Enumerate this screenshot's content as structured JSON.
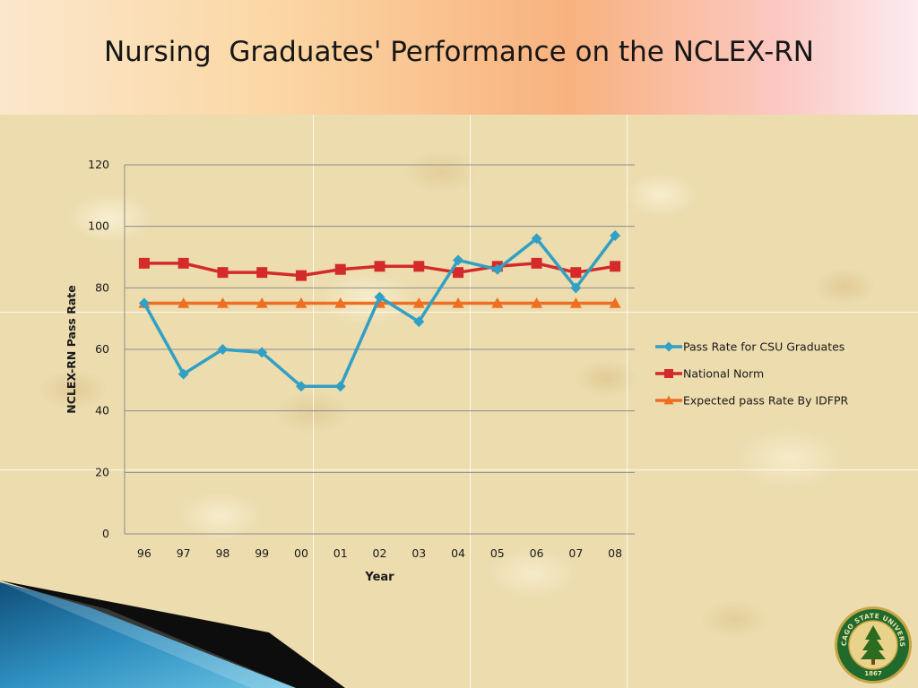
{
  "slide": {
    "title": "Nursing  Graduates' Performance on the NCLEX-RN"
  },
  "colors": {
    "csu": "#31a0c4",
    "national": "#d42a2a",
    "expected": "#ee6f22",
    "grid": "#8c8c8c",
    "text": "#1a1a1a"
  },
  "chart_data": {
    "type": "line",
    "title": "",
    "xlabel": "Year",
    "ylabel": "NCLEX-RN Pass Rate",
    "categories": [
      "96",
      "97",
      "98",
      "99",
      "00",
      "01",
      "02",
      "03",
      "04",
      "05",
      "06",
      "07",
      "08"
    ],
    "ylim": [
      0,
      120
    ],
    "yticks": [
      "0",
      "20",
      "40",
      "60",
      "80",
      "100",
      "120"
    ],
    "grid": true,
    "legend_position": "right",
    "series": [
      {
        "name": "Pass Rate for CSU Graduates",
        "marker": "diamond",
        "color": "#31a0c4",
        "values": [
          75,
          52,
          60,
          59,
          48,
          48,
          77,
          69,
          89,
          86,
          96,
          80,
          97
        ]
      },
      {
        "name": "National Norm",
        "marker": "square",
        "color": "#d42a2a",
        "values": [
          88,
          88,
          85,
          85,
          84,
          86,
          87,
          87,
          85,
          87,
          88,
          85,
          87
        ]
      },
      {
        "name": "Expected pass Rate By IDFPR",
        "marker": "triangle",
        "color": "#ee6f22",
        "values": [
          75,
          75,
          75,
          75,
          75,
          75,
          75,
          75,
          75,
          75,
          75,
          75,
          75
        ]
      }
    ]
  },
  "logo": {
    "name": "chicago-state-university-seal",
    "text_top": "CHICAGO STATE UNIVERSITY",
    "year": "1867"
  }
}
